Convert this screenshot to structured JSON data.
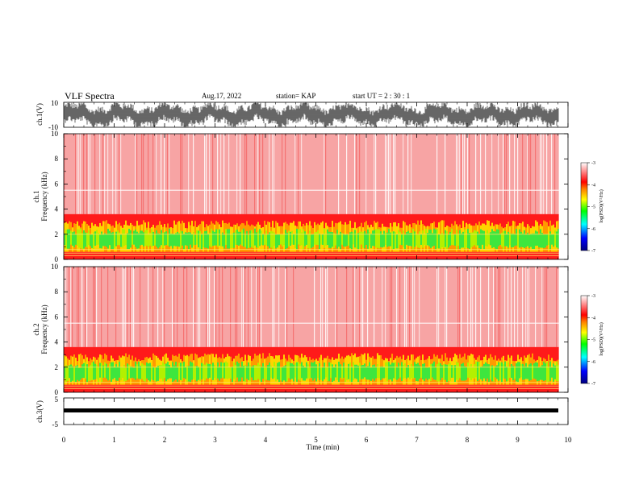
{
  "header": {
    "title": "VLF Spectra",
    "date": "Aug.17, 2022",
    "station": "station= KAP",
    "start": "start  UT =   2  : 30 : 1"
  },
  "chart_data": [
    {
      "type": "line",
      "panel": "waveform-ch1",
      "ylabel": "ch.1(V)",
      "ylim": [
        -10,
        10
      ],
      "ytick_labels": [
        "10",
        "-10"
      ]
    },
    {
      "type": "heatmap",
      "panel": "spectrogram-ch1",
      "ylabel_line1": "ch.1",
      "ylabel_line2": "Frequency  (kHz)",
      "ylim": [
        0,
        10
      ],
      "ytick_labels": [
        "0",
        "2",
        "4",
        "6",
        "8",
        "10"
      ],
      "colorbar": {
        "label": "log(PSD)(V²/Hz)",
        "range": [
          -7,
          -3
        ],
        "tick_labels": [
          "-3",
          "-4",
          "-5",
          "-6",
          "-7"
        ]
      },
      "bands_khz": {
        "strong_red_top": 3.6,
        "green_yellow_top": 2.8,
        "green_core": [
          1.0,
          2.2
        ]
      }
    },
    {
      "type": "heatmap",
      "panel": "spectrogram-ch2",
      "ylabel_line1": "ch.2",
      "ylabel_line2": "Frequency  (kHz)",
      "ylim": [
        0,
        10
      ],
      "ytick_labels": [
        "0",
        "2",
        "4",
        "6",
        "8",
        "10"
      ],
      "colorbar": {
        "label": "log(PSD)(V²/Hz)",
        "range": [
          -7,
          -3
        ],
        "tick_labels": [
          "-3",
          "-4",
          "-5",
          "-6",
          "-7"
        ]
      },
      "bands_khz": {
        "strong_red_top": 3.6,
        "green_yellow_top": 2.8,
        "green_core": [
          1.0,
          2.2
        ]
      }
    },
    {
      "type": "line",
      "panel": "waveform-ch3",
      "ylabel": "ch.3(V)",
      "ylim": [
        -5,
        5
      ],
      "ytick_labels": [
        "5",
        "-5"
      ]
    }
  ],
  "x_axis": {
    "xlabel": "Time  (min)",
    "xlim": [
      0,
      10
    ],
    "tick_labels": [
      "0",
      "1",
      "2",
      "3",
      "4",
      "5",
      "6",
      "7",
      "8",
      "9",
      "10"
    ],
    "data_end": 9.82
  },
  "colors": {
    "scale": [
      "#00007f",
      "#0000ff",
      "#00ffff",
      "#00ff00",
      "#ffff00",
      "#ff8000",
      "#ff0000",
      "#ffffff"
    ],
    "line": "#000000"
  }
}
